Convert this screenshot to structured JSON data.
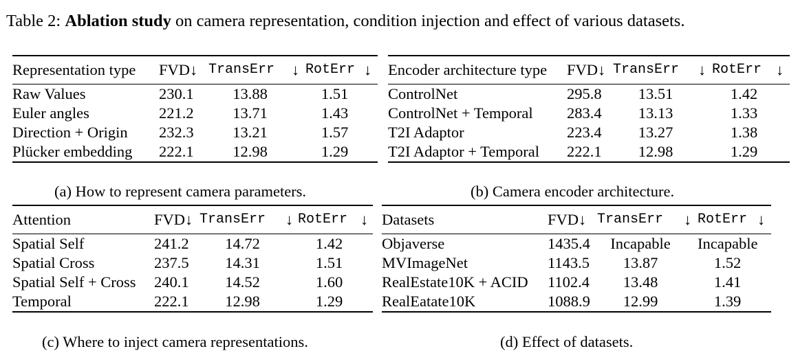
{
  "title": {
    "prefix": "Table 2:",
    "bold": "Ablation study",
    "rest": "on camera representation, condition injection and effect of various datasets."
  },
  "tables": {
    "a": {
      "headers": [
        "Representation type",
        "FVD↓",
        "TransErr",
        "↓",
        "RotErr",
        "↓"
      ],
      "rows": [
        {
          "label": "Raw Values",
          "fvd": "230.1",
          "trans": "13.88",
          "rot": "1.51"
        },
        {
          "label": "Euler angles",
          "fvd": "221.2",
          "trans": "13.71",
          "rot": "1.43"
        },
        {
          "label": "Direction + Origin",
          "fvd": "232.3",
          "trans": "13.21",
          "rot": "1.57"
        },
        {
          "label": "Plücker embedding",
          "fvd": "222.1",
          "trans": "12.98",
          "rot": "1.29"
        }
      ],
      "caption": "(a) How to represent camera parameters."
    },
    "b": {
      "headers": [
        "Encoder architecture type",
        "FVD↓",
        "TransErr",
        "↓",
        "RotErr",
        "↓"
      ],
      "rows": [
        {
          "label": "ControlNet",
          "fvd": "295.8",
          "trans": "13.51",
          "rot": "1.42"
        },
        {
          "label": "ControlNet + Temporal",
          "fvd": "283.4",
          "trans": "13.13",
          "rot": "1.33"
        },
        {
          "label": "T2I Adaptor",
          "fvd": "223.4",
          "trans": "13.27",
          "rot": "1.38"
        },
        {
          "label": "T2I Adaptor + Temporal",
          "fvd": "222.1",
          "trans": "12.98",
          "rot": "1.29"
        }
      ],
      "caption": "(b) Camera encoder architecture."
    },
    "c": {
      "headers": [
        "Attention",
        "FVD↓",
        "TransErr",
        "↓",
        "RotErr",
        "↓"
      ],
      "rows": [
        {
          "label": "Spatial Self",
          "fvd": "241.2",
          "trans": "14.72",
          "rot": "1.42"
        },
        {
          "label": "Spatial Cross",
          "fvd": "237.5",
          "trans": "14.31",
          "rot": "1.51"
        },
        {
          "label": "Spatial Self + Cross",
          "fvd": "240.1",
          "trans": "14.52",
          "rot": "1.60"
        },
        {
          "label": "Temporal",
          "fvd": "222.1",
          "trans": "12.98",
          "rot": "1.29"
        }
      ],
      "caption": "(c) Where to inject camera representations."
    },
    "d": {
      "headers": [
        "Datasets",
        "FVD↓",
        "TransErr",
        "↓",
        "RotErr",
        "↓"
      ],
      "rows": [
        {
          "label": "Objaverse",
          "fvd": "1435.4",
          "trans": "Incapable",
          "rot": "Incapable"
        },
        {
          "label": "MVImageNet",
          "fvd": "1143.5",
          "trans": "13.87",
          "rot": "1.52"
        },
        {
          "label": "RealEstate10K + ACID",
          "fvd": "1102.4",
          "trans": "13.48",
          "rot": "1.41"
        },
        {
          "label": "RealEatate10K",
          "fvd": "1088.9",
          "trans": "12.99",
          "rot": "1.39"
        }
      ],
      "caption": "(d) Effect of datasets."
    }
  }
}
